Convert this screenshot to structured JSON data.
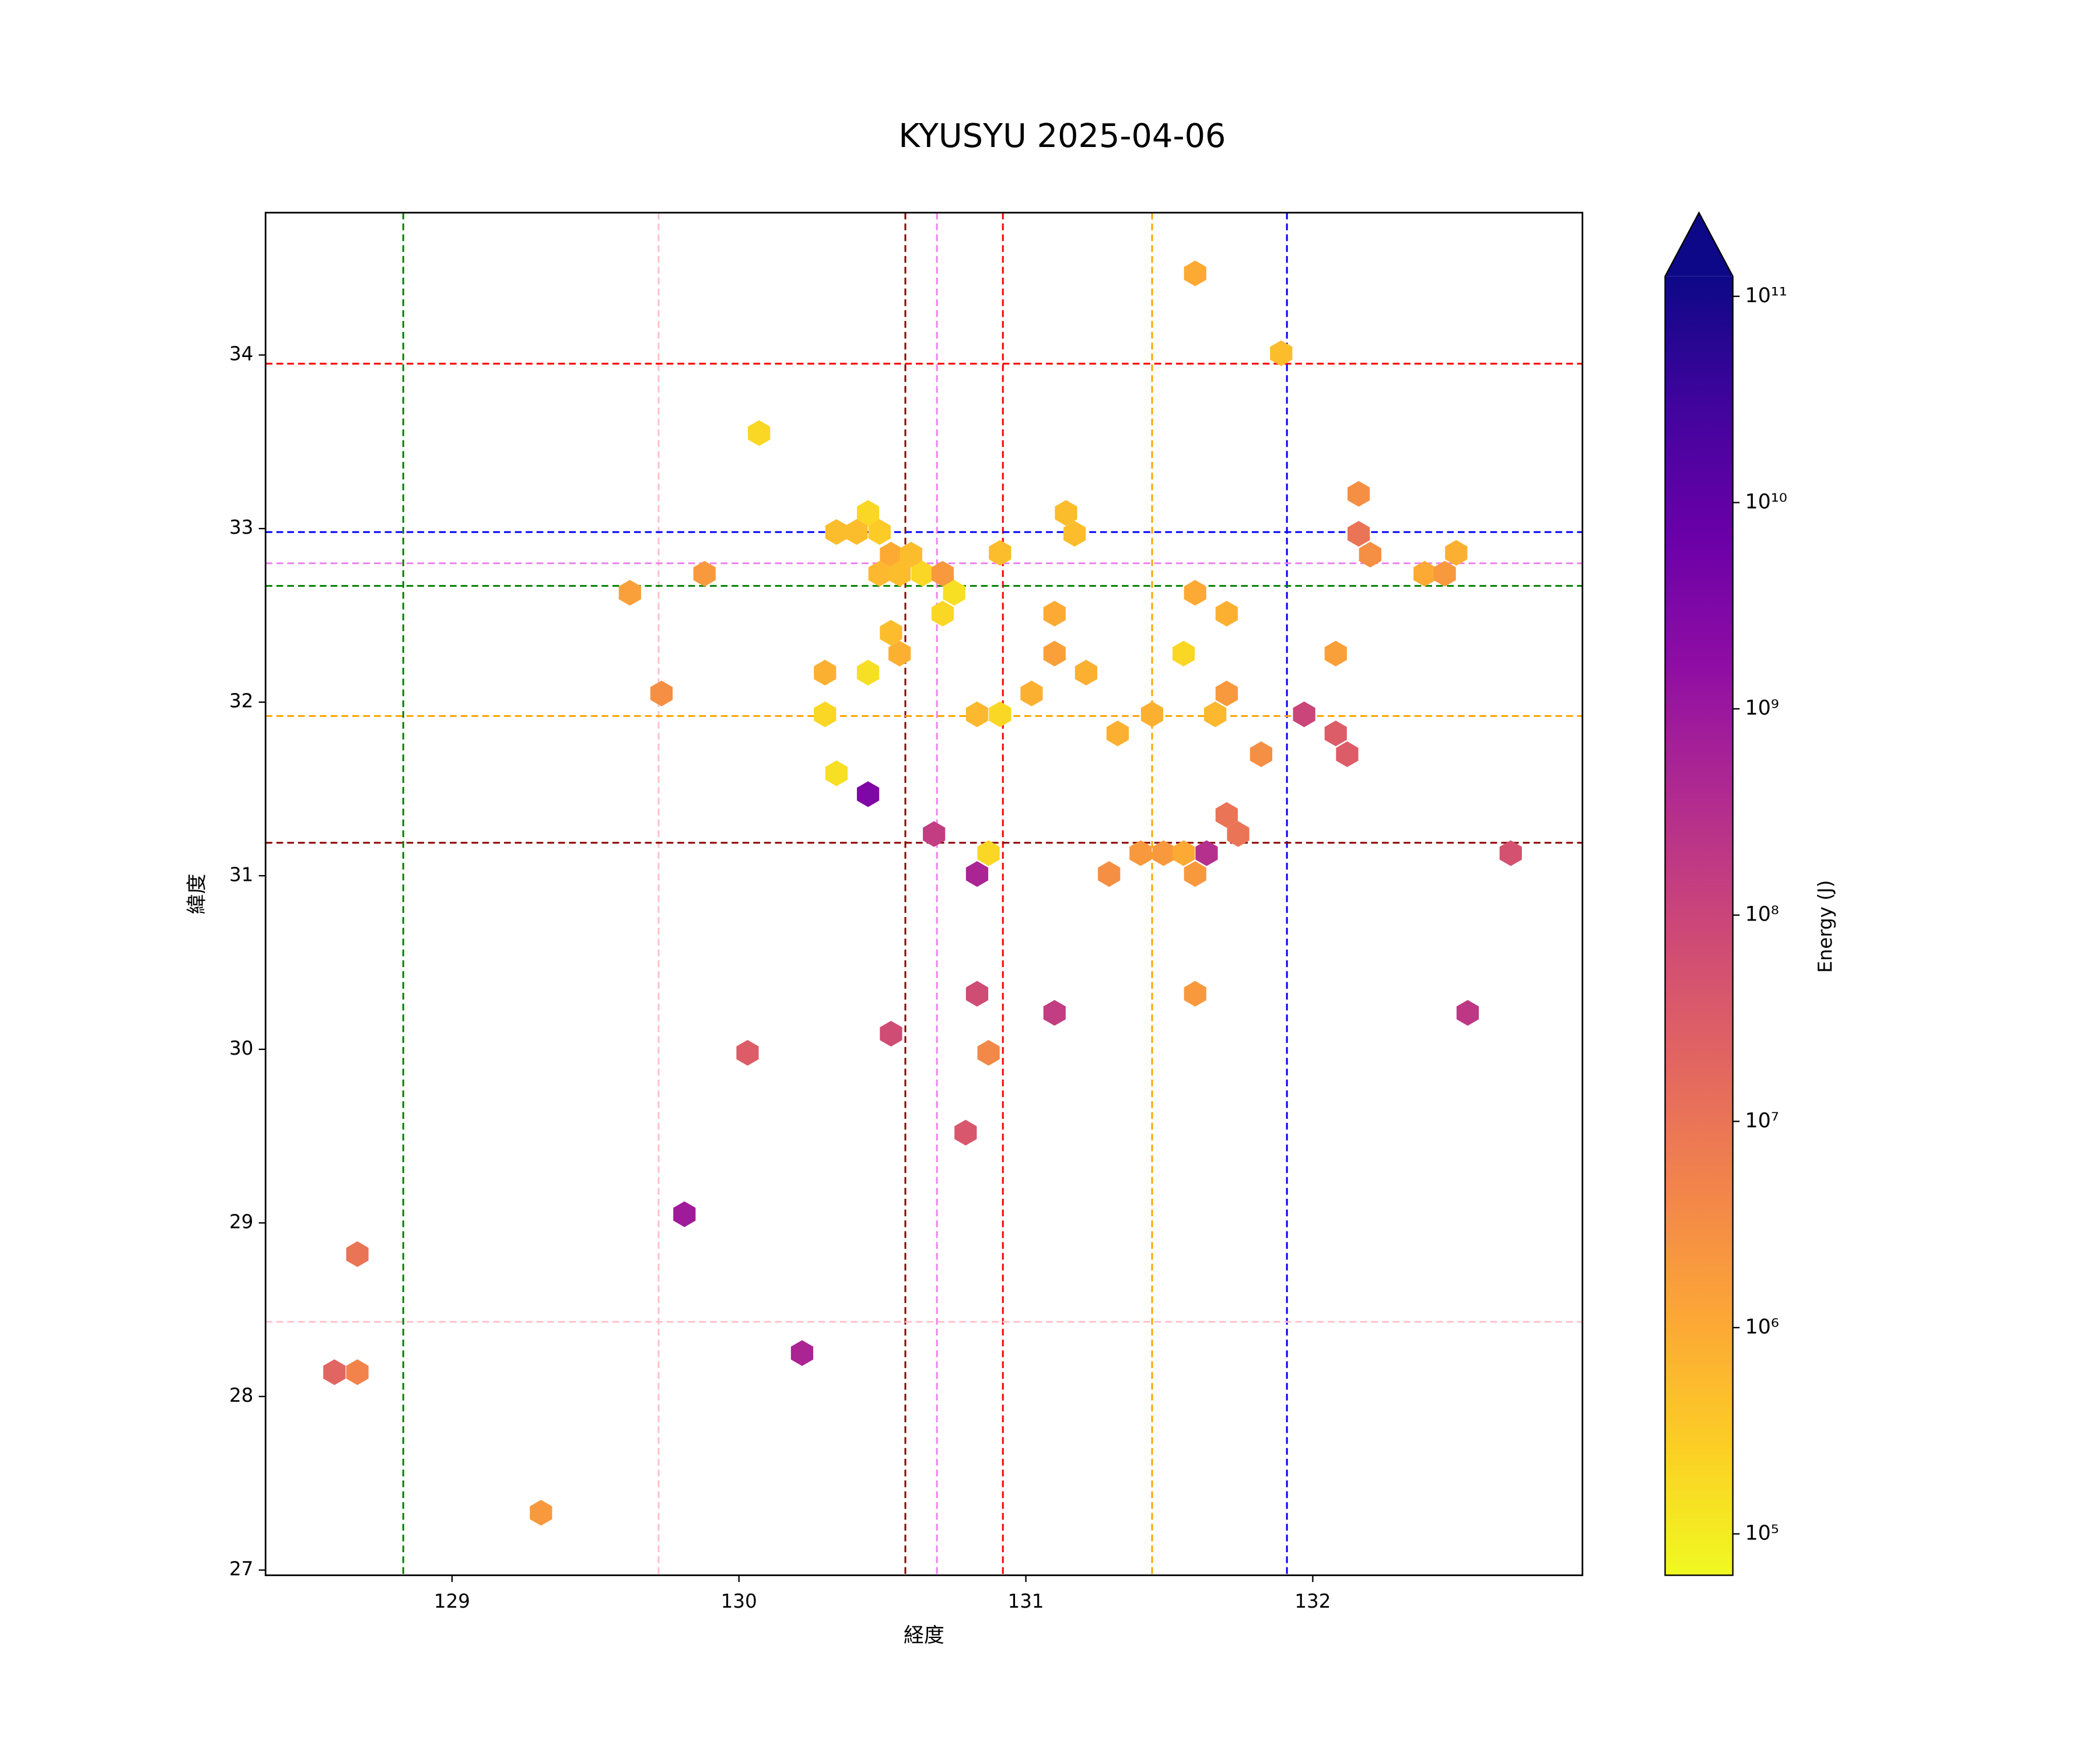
{
  "chart_data": {
    "type": "hexbin",
    "title": "KYUSYU 2025-04-06",
    "x_label": "経度",
    "y_label": "緯度",
    "colorbar_label": "Energy (J)",
    "colormap": "plasma_r",
    "color_scale": "log",
    "clim": [
      63000,
      125000000000
    ],
    "colorbar_extend": "max",
    "colorbar_ticks": [
      {
        "value": 100000,
        "label": "10⁵"
      },
      {
        "value": 1000000,
        "label": "10⁶"
      },
      {
        "value": 10000000,
        "label": "10⁷"
      },
      {
        "value": 100000000,
        "label": "10⁸"
      },
      {
        "value": 1000000000,
        "label": "10⁹"
      },
      {
        "value": 10000000000,
        "label": "10¹⁰"
      },
      {
        "value": 100000000000,
        "label": "10¹¹"
      }
    ],
    "xlim": [
      128.35,
      132.94
    ],
    "ylim": [
      26.97,
      34.82
    ],
    "xticks": [
      129,
      130,
      131,
      132
    ],
    "yticks": [
      27,
      28,
      29,
      30,
      31,
      32,
      33,
      34
    ],
    "x": [
      131.59,
      131.89,
      130.07,
      132.16,
      130.45,
      130.34,
      130.41,
      130.49,
      131.14,
      131.17,
      132.16,
      132.2,
      130.53,
      130.6,
      130.91,
      130.49,
      130.56,
      130.64,
      130.71,
      129.88,
      132.39,
      132.46,
      132.5,
      129.62,
      130.75,
      131.59,
      130.71,
      131.1,
      131.7,
      130.53,
      130.56,
      131.1,
      131.55,
      132.08,
      129.73,
      130.3,
      130.45,
      131.21,
      131.02,
      131.7,
      130.3,
      130.83,
      130.91,
      131.44,
      131.66,
      131.97,
      131.32,
      132.08,
      132.12,
      131.82,
      130.34,
      130.45,
      131.7,
      131.74,
      130.68,
      130.87,
      131.4,
      131.48,
      131.55,
      131.63,
      132.69,
      131.29,
      131.59,
      130.83,
      130.83,
      131.59,
      131.1,
      132.54,
      130.53,
      130.03,
      130.87,
      130.79,
      129.81,
      128.67,
      128.59,
      128.67,
      130.22,
      129.31
    ],
    "y": [
      34.47,
      34.01,
      33.55,
      33.2,
      33.09,
      32.98,
      32.98,
      32.98,
      33.09,
      32.97,
      32.97,
      32.85,
      32.85,
      32.85,
      32.86,
      32.74,
      32.74,
      32.74,
      32.74,
      32.74,
      32.74,
      32.74,
      32.86,
      32.63,
      32.63,
      32.63,
      32.51,
      32.51,
      32.51,
      32.4,
      32.28,
      32.28,
      32.28,
      32.28,
      32.05,
      32.17,
      32.17,
      32.17,
      32.05,
      32.05,
      31.93,
      31.93,
      31.93,
      31.93,
      31.93,
      31.93,
      31.82,
      31.82,
      31.7,
      31.7,
      31.59,
      31.47,
      31.35,
      31.24,
      31.24,
      31.13,
      31.13,
      31.13,
      31.13,
      31.13,
      31.13,
      31.01,
      31.01,
      31.01,
      30.32,
      30.32,
      30.21,
      30.21,
      30.09,
      29.98,
      29.98,
      29.52,
      29.05,
      28.82,
      28.14,
      28.14,
      28.25,
      27.33
    ],
    "values": [
      1000000,
      500000,
      200000,
      3000000,
      200000,
      500000,
      500000,
      300000,
      500000,
      500000,
      10000000,
      3000000,
      1000000,
      500000,
      500000,
      600000,
      500000,
      200000,
      2000000,
      2000000,
      1000000,
      2000000,
      800000,
      1500000,
      150000,
      1000000,
      200000,
      1000000,
      800000,
      500000,
      800000,
      1500000,
      200000,
      1500000,
      3000000,
      800000,
      150000,
      800000,
      800000,
      2000000,
      200000,
      600000,
      200000,
      800000,
      600000,
      100000000,
      800000,
      30000000,
      30000000,
      3000000,
      150000,
      3000000000,
      10000000,
      10000000,
      150000000,
      200000,
      2000000,
      2000000,
      1000000,
      300000000,
      50000000,
      3000000,
      2000000,
      500000000,
      70000000,
      2000000,
      150000000,
      200000000,
      70000000,
      30000000,
      4000000,
      40000000,
      800000000,
      10000000,
      20000000,
      5000000,
      500000000,
      2000000
    ],
    "reference_lines": {
      "vertical": [
        {
          "x": 128.83,
          "color": "#008000"
        },
        {
          "x": 129.72,
          "color": "#ffc0cb"
        },
        {
          "x": 130.58,
          "color": "#8b0000"
        },
        {
          "x": 130.69,
          "color": "#ee82ee"
        },
        {
          "x": 130.92,
          "color": "#ff0000"
        },
        {
          "x": 131.44,
          "color": "#ffa500"
        },
        {
          "x": 131.91,
          "color": "#0000ff"
        }
      ],
      "horizontal": [
        {
          "y": 33.95,
          "color": "#ff0000"
        },
        {
          "y": 32.98,
          "color": "#0000ff"
        },
        {
          "y": 32.8,
          "color": "#ee82ee"
        },
        {
          "y": 32.67,
          "color": "#008000"
        },
        {
          "y": 31.92,
          "color": "#ffa500"
        },
        {
          "y": 31.19,
          "color": "#8b0000"
        },
        {
          "y": 28.43,
          "color": "#ffc0cb"
        }
      ]
    }
  }
}
